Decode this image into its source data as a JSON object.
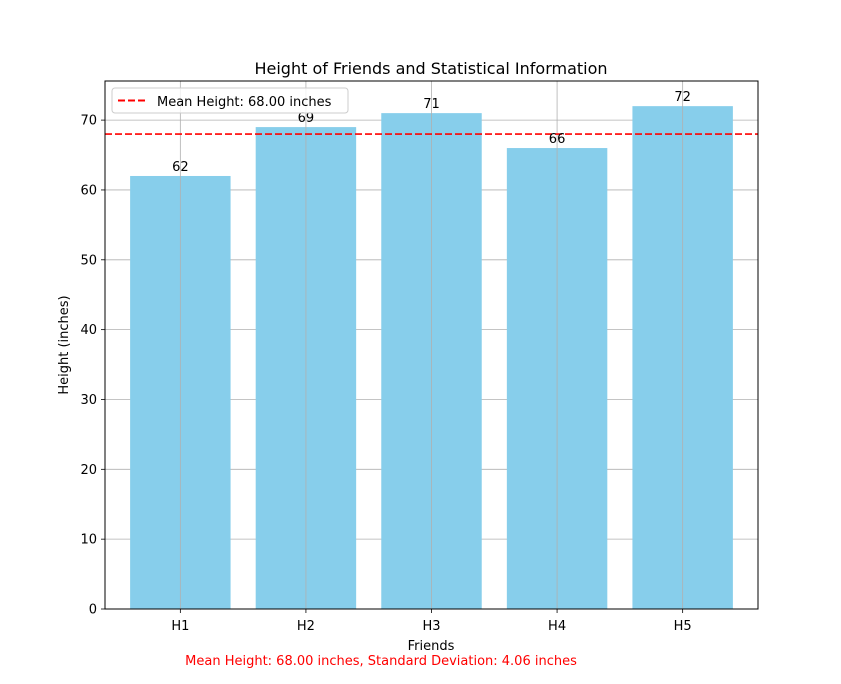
{
  "chart_data": {
    "type": "bar",
    "title": "Height of Friends and Statistical Information",
    "xlabel": "Friends",
    "ylabel": "Height (inches)",
    "categories": [
      "H1",
      "H2",
      "H3",
      "H4",
      "H5"
    ],
    "values": [
      62,
      69,
      71,
      66,
      72
    ],
    "value_labels": [
      "62",
      "69",
      "71",
      "66",
      "72"
    ],
    "ylim": [
      0,
      75.6
    ],
    "yticks": [
      0,
      10,
      20,
      30,
      40,
      50,
      60,
      70
    ],
    "grid": true,
    "bar_color": "#87ceeb",
    "mean_line": {
      "value": 68.0,
      "label": "Mean Height: 68.00 inches",
      "color": "#ff0000",
      "style": "dashed"
    },
    "legend": {
      "placement": "top-left",
      "entries": [
        "Mean Height: 68.00 inches"
      ]
    },
    "annotation": {
      "text": "Mean Height: 68.00 inches, Standard Deviation: 4.06 inches",
      "color": "#ff0000"
    }
  }
}
